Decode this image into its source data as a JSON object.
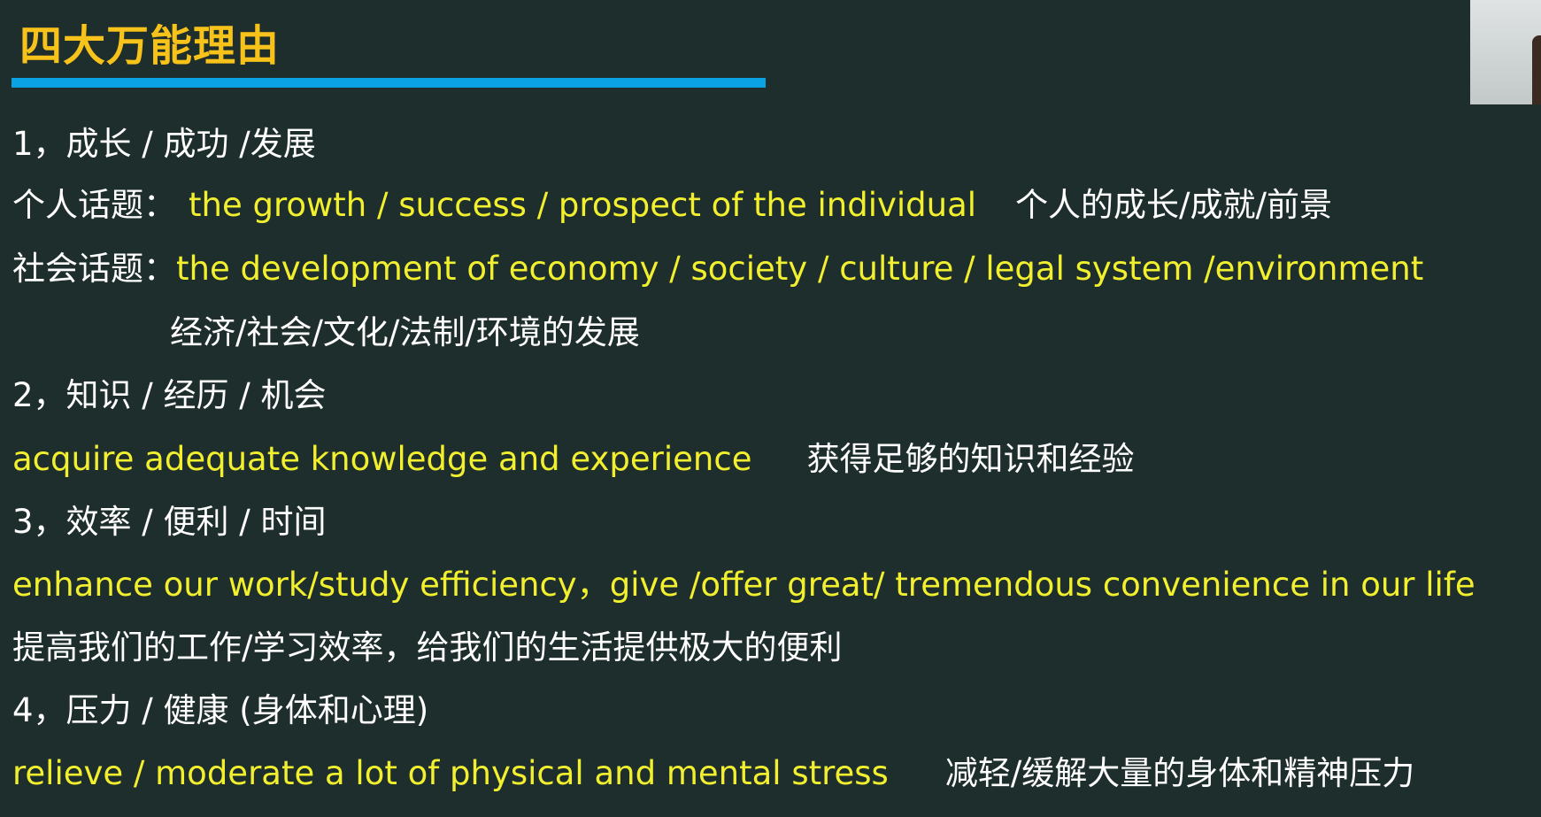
{
  "title": "四大万能理由",
  "colors": {
    "background": "#1e2e2d",
    "title": "#f7c21a",
    "title_underline": "#0aa2e3",
    "english_text": "#f2f02e",
    "chinese_text": "#ffffff"
  },
  "webcam": {
    "icon": "webcam-thumbnail"
  },
  "lines": {
    "l1": {
      "text": "1，成长 / 成功 /发展"
    },
    "l2": {
      "label": "个人话题：",
      "english": "the growth / success / prospect of the individual",
      "chinese": "个人的成长/成就/前景"
    },
    "l3": {
      "label": "社会话题：",
      "english": "the development of economy / society / culture / legal system /environment"
    },
    "l4": {
      "chinese": "经济/社会/文化/法制/环境的发展"
    },
    "l5": {
      "text": "2，知识 / 经历 / 机会"
    },
    "l6": {
      "english": "acquire adequate knowledge and experience",
      "chinese": "获得足够的知识和经验"
    },
    "l7": {
      "text": "3，效率 / 便利 / 时间"
    },
    "l8": {
      "english": "enhance our work/study efficiency，give /offer great/ tremendous convenience in our life"
    },
    "l9": {
      "chinese": "提高我们的工作/学习效率，给我们的生活提供极大的便利"
    },
    "l10": {
      "text": "4，压力 / 健康 (身体和心理)"
    },
    "l11": {
      "english": "relieve / moderate a lot of physical and mental stress",
      "chinese": "减轻/缓解大量的身体和精神压力"
    }
  }
}
